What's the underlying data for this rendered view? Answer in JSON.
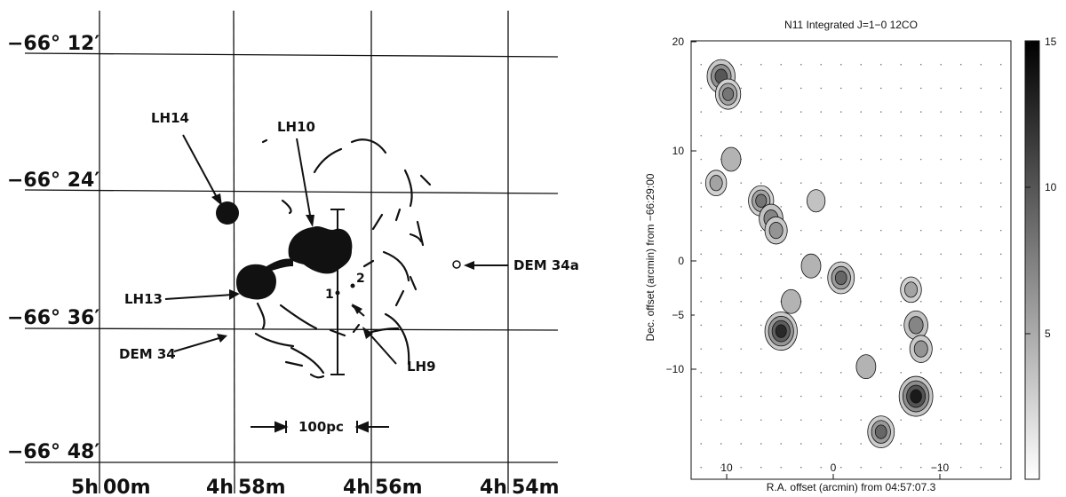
{
  "left_map": {
    "dec_labels": [
      "−66° 12′",
      "−66° 24′",
      "−66° 36′",
      "−66° 48′"
    ],
    "ra_labels": [
      "5h",
      "00m",
      "4h",
      "58m",
      "4h",
      "56m",
      "4h",
      "54m"
    ],
    "objects": {
      "lh14": "LH14",
      "lh10": "LH10",
      "lh13": "LH13",
      "lh9": "LH9",
      "dem34": "DEM 34",
      "dem34a": "DEM 34a",
      "star1": "1",
      "star2": "2"
    },
    "scale_bar": "100pc",
    "icons": [
      "arrow-icon",
      "cloud-blob-icon",
      "dot-icon"
    ]
  },
  "right_map": {
    "title": "N11 Integrated J=1−0 12CO",
    "xlabel": "R.A. offset (arcmin) from 04:57:07.3",
    "ylabel": "Dec. offset (arcmin) from −66:29:00",
    "x_ticks": [
      "10",
      "0",
      "−10"
    ],
    "y_ticks": [
      "20",
      "10",
      "0",
      "−5",
      "−10"
    ],
    "colorbar_ticks": [
      "15",
      "10",
      "5"
    ]
  },
  "chart_data": {
    "type": "heatmap",
    "title": "N11 Integrated J=1−0 12CO",
    "xlabel": "R.A. offset (arcmin) from 04:57:07.3",
    "ylabel": "Dec. offset (arcmin) from −66:29:00",
    "xlim": [
      13,
      -19
    ],
    "ylim": [
      -17,
      20
    ],
    "colorbar_range": [
      0,
      15
    ],
    "colorbar_ticks": [
      5,
      10,
      15
    ],
    "grid": false,
    "peaks": [
      {
        "x": 10,
        "y": 17,
        "value": 11
      },
      {
        "x": 9.3,
        "y": 15.5,
        "value": 9
      },
      {
        "x": 10.5,
        "y": 8,
        "value": 6
      },
      {
        "x": 9,
        "y": 10,
        "value": 5
      },
      {
        "x": 6,
        "y": 6.5,
        "value": 9
      },
      {
        "x": 5,
        "y": 5,
        "value": 8
      },
      {
        "x": 4.5,
        "y": 4,
        "value": 7
      },
      {
        "x": 1,
        "y": 1,
        "value": 5
      },
      {
        "x": -2,
        "y": 0,
        "value": 10
      },
      {
        "x": 0.5,
        "y": 6.5,
        "value": 4
      },
      {
        "x": 3,
        "y": -2,
        "value": 5
      },
      {
        "x": 4,
        "y": -4.5,
        "value": 14
      },
      {
        "x": -4.5,
        "y": -7.5,
        "value": 5
      },
      {
        "x": -6,
        "y": -13,
        "value": 10
      },
      {
        "x": -9,
        "y": -1,
        "value": 6
      },
      {
        "x": -9.5,
        "y": -4,
        "value": 8
      },
      {
        "x": -10,
        "y": -6,
        "value": 7
      },
      {
        "x": -9.5,
        "y": -10,
        "value": 15
      }
    ]
  }
}
